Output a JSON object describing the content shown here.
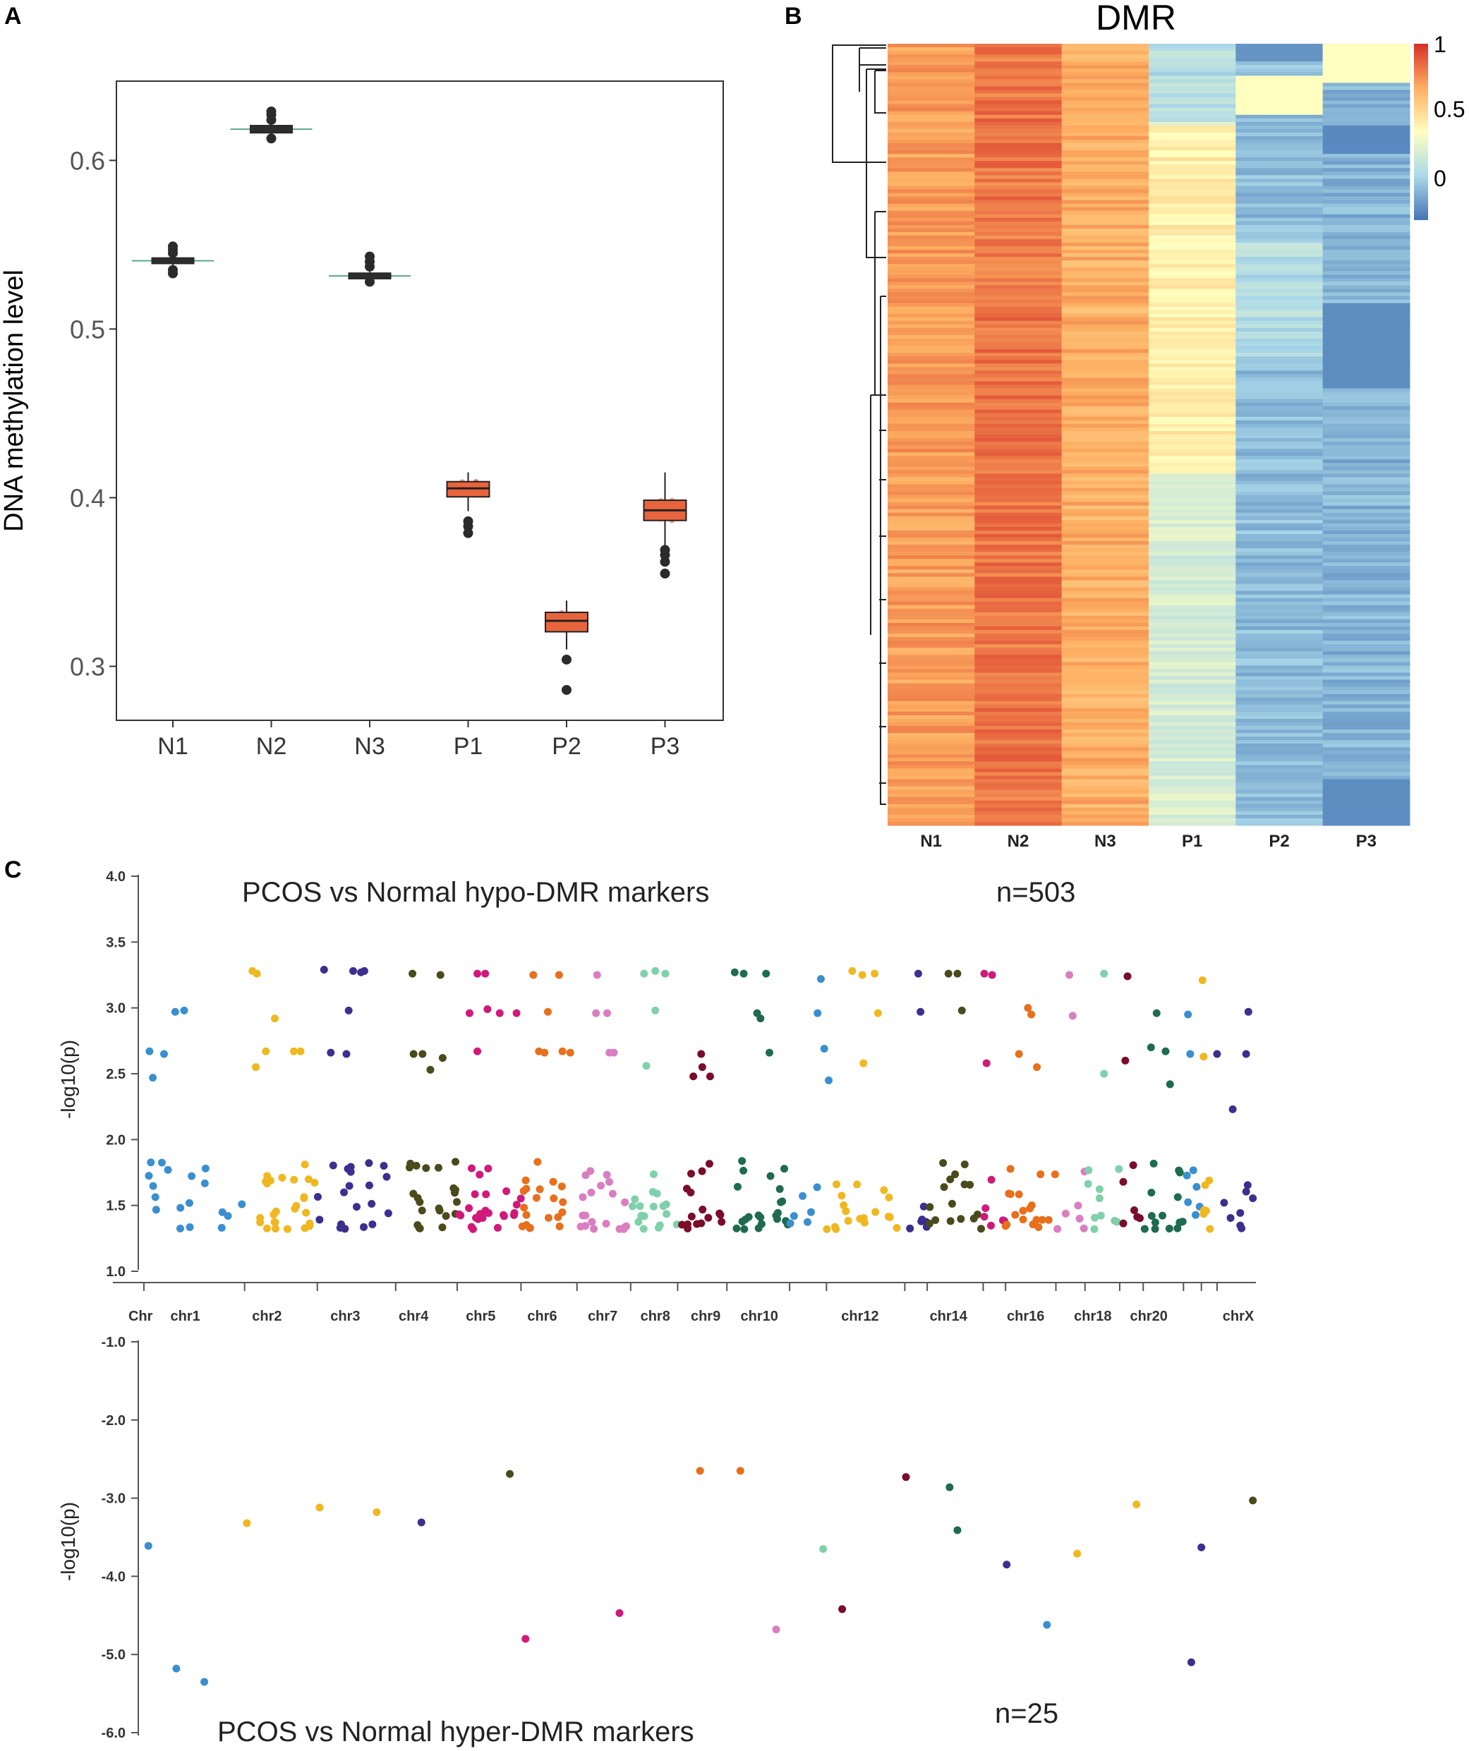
{
  "chart_data": [
    {
      "panel": "A",
      "type": "box",
      "title": "",
      "xlabel": "",
      "ylabel": "DNA methylation level",
      "ylim": [
        0.268,
        0.647
      ],
      "yticks": [
        "0.3",
        "0.4",
        "0.5",
        "0.6"
      ],
      "yticks_values": [
        0.3,
        0.4,
        0.5,
        0.6
      ],
      "categories": [
        "N1",
        "N2",
        "N3",
        "P1",
        "P2",
        "P3"
      ],
      "boxes": [
        {
          "name": "N1",
          "q1": 0.5395,
          "median": 0.5405,
          "q3": 0.5415,
          "whisker_low": 0.537,
          "whisker_high": 0.544,
          "outliers": [
            0.533,
            0.535,
            0.545,
            0.547,
            0.549
          ],
          "color": "#4a7a5a"
        },
        {
          "name": "N2",
          "q1": 0.617,
          "median": 0.6185,
          "q3": 0.62,
          "whisker_low": 0.615,
          "whisker_high": 0.622,
          "outliers": [
            0.613,
            0.624,
            0.627,
            0.629
          ],
          "color": "#4a7a5a"
        },
        {
          "name": "N3",
          "q1": 0.5305,
          "median": 0.5315,
          "q3": 0.5325,
          "whisker_low": 0.529,
          "whisker_high": 0.534,
          "outliers": [
            0.528,
            0.537,
            0.54,
            0.543
          ],
          "color": "#4a7a5a"
        },
        {
          "name": "P1",
          "q1": 0.4005,
          "median": 0.4055,
          "q3": 0.4095,
          "whisker_low": 0.392,
          "whisker_high": 0.415,
          "outliers": [
            0.379,
            0.383,
            0.386
          ],
          "color": "#e8643c"
        },
        {
          "name": "P2",
          "q1": 0.3205,
          "median": 0.327,
          "q3": 0.332,
          "whisker_low": 0.31,
          "whisker_high": 0.339,
          "outliers": [
            0.286,
            0.304
          ],
          "color": "#e8643c"
        },
        {
          "name": "P3",
          "q1": 0.3865,
          "median": 0.3925,
          "q3": 0.3985,
          "whisker_low": 0.37,
          "whisker_high": 0.415,
          "outliers": [
            0.355,
            0.362,
            0.366,
            0.369
          ],
          "color": "#e8643c"
        }
      ]
    },
    {
      "panel": "B",
      "type": "heatmap",
      "title": "DMR",
      "columns": [
        "N1",
        "N2",
        "N3",
        "P1",
        "P2",
        "P3"
      ],
      "colorbar_labels": [
        "1",
        "0.5",
        "0"
      ],
      "colorbar_values": [
        1,
        0.5,
        0
      ],
      "column_mean_values": [
        0.78,
        0.86,
        0.74,
        0.38,
        0.18,
        0.16
      ],
      "colors": {
        "high": "#d73027",
        "mid": "#ffffbf",
        "low": "#4575b4"
      }
    },
    {
      "panel": "C",
      "type": "scatter",
      "subtype": "manhattan",
      "top": {
        "title": "PCOS  vs Normal hypo-DMR markers",
        "count": "n=503",
        "ylabel": "-log10(p)",
        "ylim": [
          1.0,
          4.0
        ],
        "yticks": [
          "1.0",
          "1.5",
          "2.0",
          "2.5",
          "3.0",
          "3.5",
          "4.0"
        ],
        "yticks_values": [
          1.0,
          1.5,
          2.0,
          2.5,
          3.0,
          3.5,
          4.0
        ],
        "xlim": [
          0,
          100
        ],
        "x_labels": [
          "Chr",
          "chr1",
          "chr2",
          "chr3",
          "chr4",
          "chr5",
          "chr6",
          "chr7",
          "chr8",
          "chr9",
          "chr10",
          "chr12",
          "chr14",
          "chr16",
          "chr18",
          "chr20",
          "chrX"
        ],
        "x_label_positions": [
          0.2,
          4.2,
          11.5,
          18.5,
          24.6,
          30.6,
          36.1,
          41.5,
          46.2,
          50.7,
          55.5,
          64.5,
          72.4,
          79.3,
          85.3,
          90.3,
          98.3
        ],
        "chromosome_bounds": [
          [
            0.5,
            9.5
          ],
          [
            9.5,
            16.0
          ],
          [
            16.0,
            23.0
          ],
          [
            23.0,
            28.5
          ],
          [
            28.5,
            34.2
          ],
          [
            34.2,
            39.2
          ],
          [
            39.2,
            44.0
          ],
          [
            44.0,
            48.2
          ],
          [
            48.2,
            52.6
          ],
          [
            52.6,
            58.2
          ],
          [
            58.2,
            61.5
          ],
          [
            61.5,
            68.5
          ],
          [
            68.5,
            70.5
          ],
          [
            70.5,
            75.5
          ],
          [
            75.5,
            77.5
          ],
          [
            77.5,
            82.0
          ],
          [
            82.0,
            84.6
          ],
          [
            84.6,
            87.7
          ],
          [
            87.7,
            89.8
          ],
          [
            89.8,
            93.4
          ],
          [
            93.4,
            95.0
          ],
          [
            95.0,
            96.4
          ],
          [
            96.4,
            99.8
          ]
        ],
        "chromosome_colors": [
          "#3a8fd0",
          "#f0b820",
          "#3b2f8f",
          "#4a4a1c",
          "#d0197a",
          "#e86f1c",
          "#d97ec0",
          "#7fd1aa",
          "#7a0d2a",
          "#1f6b50",
          "#3a8fd0",
          "#f0b820",
          "#3b2f8f",
          "#4a4a1c",
          "#d0197a",
          "#e86f1c",
          "#d97ec0",
          "#7fd1aa",
          "#7a0d2a",
          "#1f6b50",
          "#3a8fd0",
          "#f0b820",
          "#3b2f8f"
        ],
        "point_counts": [
          18,
          26,
          20,
          22,
          24,
          20,
          20,
          18,
          16,
          22,
          6,
          18,
          6,
          16,
          6,
          18,
          6,
          10,
          6,
          14,
          6,
          6,
          8
        ],
        "high_clusters": [
          {
            "chr": 0,
            "x": [
              1.0,
              2.3,
              3.3,
              4.1,
              1.3
            ],
            "y": [
              2.67,
              2.65,
              2.97,
              2.98,
              2.47
            ]
          },
          {
            "chr": 1,
            "x": [
              10.2,
              10.6,
              12.2,
              11.4,
              13.9,
              14.5,
              10.5
            ],
            "y": [
              3.28,
              3.26,
              2.92,
              2.67,
              2.67,
              2.67,
              2.55
            ]
          },
          {
            "chr": 2,
            "x": [
              16.6,
              19.2,
              19.9,
              20.2,
              18.8,
              18.6,
              17.2
            ],
            "y": [
              3.29,
              3.28,
              3.27,
              3.28,
              2.98,
              2.65,
              2.66
            ]
          },
          {
            "chr": 3,
            "x": [
              24.5,
              27.0,
              24.6,
              25.4,
              26.1,
              27.2
            ],
            "y": [
              3.26,
              3.25,
              2.65,
              2.65,
              2.53,
              2.62
            ]
          },
          {
            "chr": 4,
            "x": [
              30.3,
              31.0,
              29.6,
              31.2,
              32.3,
              33.8,
              30.3
            ],
            "y": [
              3.26,
              3.26,
              2.96,
              2.99,
              2.96,
              2.96,
              2.67
            ]
          },
          {
            "chr": 5,
            "x": [
              35.3,
              37.6,
              36.6,
              35.8,
              36.3,
              37.9,
              38.6
            ],
            "y": [
              3.25,
              3.25,
              2.97,
              2.67,
              2.66,
              2.67,
              2.66
            ]
          },
          {
            "chr": 6,
            "x": [
              41.0,
              40.9,
              41.9,
              42.5,
              42.1
            ],
            "y": [
              3.25,
              2.96,
              2.96,
              2.66,
              2.66
            ]
          },
          {
            "chr": 7,
            "x": [
              45.2,
              46.2,
              46.2,
              47.1,
              45.4
            ],
            "y": [
              3.26,
              3.28,
              2.98,
              3.26,
              2.56
            ]
          },
          {
            "chr": 8,
            "x": [
              50.3,
              50.4,
              51.1,
              49.6
            ],
            "y": [
              2.65,
              2.55,
              2.48,
              2.48
            ]
          },
          {
            "chr": 9,
            "x": [
              53.3,
              54.1,
              56.1,
              55.3,
              55.6,
              56.4
            ],
            "y": [
              3.27,
              3.26,
              3.26,
              2.96,
              2.92,
              2.66
            ]
          },
          {
            "chr": 10,
            "x": [
              61.0,
              60.7,
              61.3,
              61.7
            ],
            "y": [
              3.22,
              2.96,
              2.69,
              2.45
            ]
          },
          {
            "chr": 11,
            "x": [
              63.8,
              64.7,
              65.8,
              66.1,
              64.8
            ],
            "y": [
              3.28,
              3.25,
              3.26,
              2.96,
              2.58
            ]
          },
          {
            "chr": 12,
            "x": [
              69.7,
              69.9
            ],
            "y": [
              3.26,
              2.97
            ]
          },
          {
            "chr": 13,
            "x": [
              72.4,
              73.2,
              73.6
            ],
            "y": [
              3.26,
              3.26,
              2.98
            ]
          },
          {
            "chr": 14,
            "x": [
              75.6,
              76.3,
              75.8
            ],
            "y": [
              3.26,
              3.25,
              2.58
            ]
          },
          {
            "chr": 15,
            "x": [
              79.5,
              79.8,
              78.7,
              80.3
            ],
            "y": [
              3.0,
              2.95,
              2.65,
              2.55
            ]
          },
          {
            "chr": 16,
            "x": [
              83.2,
              83.5
            ],
            "y": [
              3.25,
              2.94
            ]
          },
          {
            "chr": 17,
            "x": [
              86.3,
              86.3
            ],
            "y": [
              3.26,
              2.5
            ]
          },
          {
            "chr": 18,
            "x": [
              88.4,
              88.2
            ],
            "y": [
              3.24,
              2.6
            ]
          },
          {
            "chr": 19,
            "x": [
              91.0,
              90.5,
              91.8,
              92.2
            ],
            "y": [
              2.96,
              2.7,
              2.67,
              2.42
            ]
          },
          {
            "chr": 20,
            "x": [
              93.8,
              94.0
            ],
            "y": [
              2.95,
              2.65
            ]
          },
          {
            "chr": 21,
            "x": [
              95.1,
              95.2
            ],
            "y": [
              3.21,
              2.63
            ]
          },
          {
            "chr": 22,
            "x": [
              99.2,
              99.0,
              96.4,
              97.8
            ],
            "y": [
              2.97,
              2.65,
              2.65,
              2.23
            ]
          }
        ]
      },
      "bottom": {
        "title": "PCOS  vs Normal hyper-DMR markers",
        "count": "n=25",
        "ylabel": "-log10(p)",
        "ylim": [
          -6.0,
          -1.0
        ],
        "yticks": [
          "-1.0",
          "-2.0",
          "-3.0",
          "-4.0",
          "-5.0",
          "-6.0"
        ],
        "yticks_values": [
          -1.0,
          -2.0,
          -3.0,
          -4.0,
          -5.0,
          -6.0
        ],
        "points": [
          {
            "x": 0.9,
            "y": -3.61,
            "chr": 0
          },
          {
            "x": 3.4,
            "y": -5.18,
            "chr": 0
          },
          {
            "x": 5.9,
            "y": -5.35,
            "chr": 0
          },
          {
            "x": 9.7,
            "y": -3.32,
            "chr": 1
          },
          {
            "x": 16.2,
            "y": -3.12,
            "chr": 1
          },
          {
            "x": 21.3,
            "y": -3.18,
            "chr": 1
          },
          {
            "x": 25.3,
            "y": -3.31,
            "chr": 2
          },
          {
            "x": 33.2,
            "y": -2.69,
            "chr": 3
          },
          {
            "x": 34.6,
            "y": -4.8,
            "chr": 4
          },
          {
            "x": 43.0,
            "y": -4.47,
            "chr": 4
          },
          {
            "x": 50.2,
            "y": -2.65,
            "chr": 5
          },
          {
            "x": 53.8,
            "y": -2.65,
            "chr": 5
          },
          {
            "x": 57.0,
            "y": -4.68,
            "chr": 6
          },
          {
            "x": 61.2,
            "y": -3.65,
            "chr": 7
          },
          {
            "x": 62.9,
            "y": -4.42,
            "chr": 8
          },
          {
            "x": 68.6,
            "y": -2.73,
            "chr": 8
          },
          {
            "x": 72.5,
            "y": -2.86,
            "chr": 9
          },
          {
            "x": 73.2,
            "y": -3.41,
            "chr": 9
          },
          {
            "x": 77.6,
            "y": -3.85,
            "chr": 12
          },
          {
            "x": 81.2,
            "y": -4.62,
            "chr": 0
          },
          {
            "x": 83.9,
            "y": -3.71,
            "chr": 1
          },
          {
            "x": 89.2,
            "y": -3.08,
            "chr": 1
          },
          {
            "x": 94.1,
            "y": -5.1,
            "chr": 2
          },
          {
            "x": 95.0,
            "y": -3.63,
            "chr": 2
          },
          {
            "x": 99.6,
            "y": -3.03,
            "chr": 3
          }
        ]
      }
    }
  ],
  "panel_labels": [
    "A",
    "B",
    "C"
  ]
}
